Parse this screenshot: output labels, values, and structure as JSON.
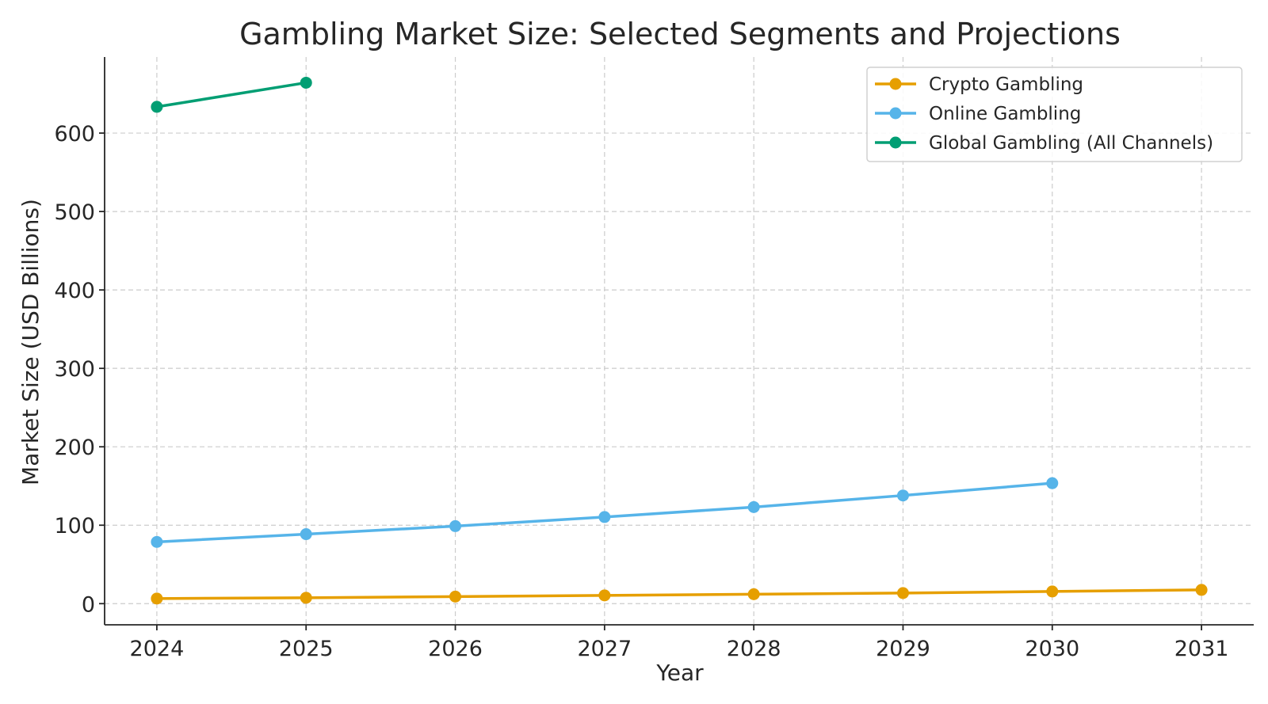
{
  "chart_data": {
    "type": "line",
    "title": "Gambling Market Size: Selected Segments and Projections",
    "xlabel": "Year",
    "ylabel": "Market Size (USD Billions)",
    "xlim": [
      2023.65,
      2031.35
    ],
    "ylim": [
      -27,
      697
    ],
    "x_ticks": [
      2024,
      2025,
      2026,
      2027,
      2028,
      2029,
      2030,
      2031
    ],
    "y_ticks": [
      0,
      100,
      200,
      300,
      400,
      500,
      600
    ],
    "grid": true,
    "legend_position": "top-right",
    "series": [
      {
        "name": "Crypto Gambling",
        "color": "#e69f00",
        "x": [
          2024,
          2025,
          2026,
          2027,
          2028,
          2029,
          2030,
          2031
        ],
        "y": [
          6.5,
          7.5,
          9,
          10.5,
          12,
          13.5,
          15.5,
          17.5
        ]
      },
      {
        "name": "Online Gambling",
        "color": "#56b4e9",
        "x": [
          2024,
          2025,
          2026,
          2027,
          2028,
          2029,
          2030
        ],
        "y": [
          78.7,
          88.6,
          98.8,
          110.4,
          123.1,
          137.9,
          153.6
        ]
      },
      {
        "name": "Global Gambling (All Channels)",
        "color": "#009e73",
        "x": [
          2024,
          2025
        ],
        "y": [
          633.5,
          664.2
        ]
      }
    ]
  }
}
